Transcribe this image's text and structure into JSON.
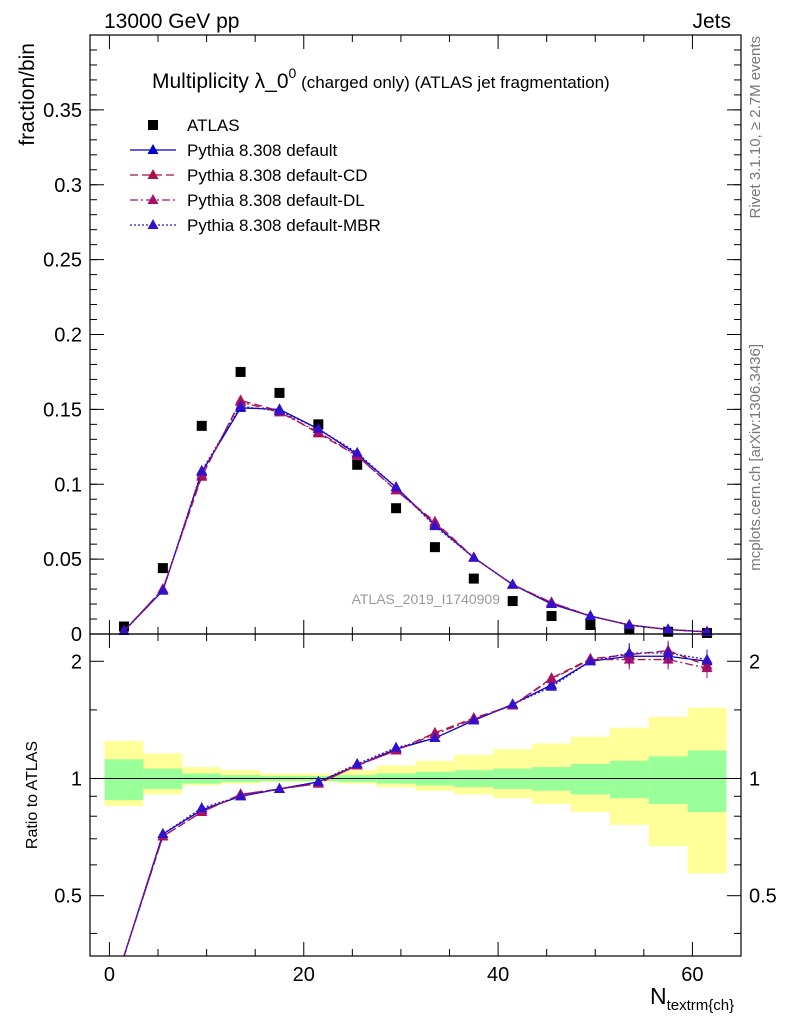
{
  "header": {
    "left": "13000 GeV pp",
    "right": "Jets"
  },
  "title": {
    "main": "Multiplicity λ_0",
    "sup": "0",
    "sub": " (charged only) (ATLAS jet fragmentation)"
  },
  "side_labels": {
    "rivet": "Rivet 3.1.10, ≥ 2.7M events",
    "mcplots": "mcplots.cern.ch [arXiv:1306.3436]"
  },
  "watermark": "ATLAS_2019_I1740909",
  "chart_data": [
    {
      "type": "scatter",
      "panel": "main",
      "ylabel": "fraction/bin",
      "xlim": [
        -2,
        65
      ],
      "ylim": [
        0,
        0.4
      ],
      "yticks": [
        "0",
        "0.05",
        "0.1",
        "0.15",
        "0.2",
        "0.25",
        "0.3",
        "0.35"
      ],
      "x": [
        1.5,
        5.5,
        9.5,
        13.5,
        17.5,
        21.5,
        25.5,
        29.5,
        33.5,
        37.5,
        41.5,
        45.5,
        49.5,
        53.5,
        57.5,
        61.5
      ],
      "series": [
        {
          "name": "ATLAS",
          "color": "#000000",
          "style": "square",
          "values": [
            0.005,
            0.044,
            0.139,
            0.175,
            0.161,
            0.14,
            0.113,
            0.084,
            0.058,
            0.037,
            0.022,
            0.012,
            0.006,
            0.003,
            0.0015,
            0.0007
          ]
        },
        {
          "name": "Pythia 8.308 default",
          "color": "#0000cc",
          "style": "solid",
          "values": [
            0.002,
            0.029,
            0.108,
            0.151,
            0.15,
            0.137,
            0.12,
            0.098,
            0.073,
            0.051,
            0.033,
            0.02,
            0.012,
            0.006,
            0.003,
            0.0014
          ]
        },
        {
          "name": "Pythia 8.308 default-CD",
          "color": "#aa1144",
          "style": "dashed",
          "values": [
            0.002,
            0.03,
            0.105,
            0.156,
            0.149,
            0.134,
            0.119,
            0.096,
            0.075,
            0.051,
            0.033,
            0.021,
            0.012,
            0.006,
            0.003,
            0.0014
          ]
        },
        {
          "name": "Pythia 8.308 default-DL",
          "color": "#aa1166",
          "style": "dashdot",
          "values": [
            0.002,
            0.03,
            0.106,
            0.155,
            0.148,
            0.135,
            0.119,
            0.096,
            0.074,
            0.051,
            0.033,
            0.021,
            0.012,
            0.006,
            0.003,
            0.0014
          ]
        },
        {
          "name": "Pythia 8.308 default-MBR",
          "color": "#3311cc",
          "style": "dotted",
          "values": [
            0.002,
            0.029,
            0.109,
            0.152,
            0.149,
            0.137,
            0.121,
            0.098,
            0.072,
            0.051,
            0.033,
            0.02,
            0.012,
            0.006,
            0.003,
            0.0014
          ]
        }
      ]
    },
    {
      "type": "line",
      "panel": "ratio",
      "ylabel": "Ratio to ATLAS",
      "xlabel": "N",
      "xlabel_sub": "textrm{ch}",
      "xlim": [
        -2,
        65
      ],
      "ylim": [
        0.35,
        2.35
      ],
      "yticks": [
        "0.5",
        "1",
        "2"
      ],
      "xticks": [
        "0",
        "20",
        "40",
        "60"
      ],
      "bands": {
        "edges": [
          -0.5,
          3.5,
          7.5,
          11.5,
          15.5,
          19.5,
          23.5,
          27.5,
          31.5,
          35.5,
          39.5,
          43.5,
          47.5,
          51.5,
          55.5,
          59.5,
          63.5
        ],
        "green_lo": [
          0.88,
          0.94,
          0.97,
          0.98,
          0.985,
          0.985,
          0.98,
          0.97,
          0.96,
          0.95,
          0.94,
          0.93,
          0.91,
          0.89,
          0.86,
          0.82
        ],
        "green_hi": [
          1.12,
          1.06,
          1.03,
          1.02,
          1.015,
          1.015,
          1.02,
          1.03,
          1.04,
          1.05,
          1.06,
          1.07,
          1.09,
          1.11,
          1.14,
          1.18
        ],
        "yellow_lo": [
          0.85,
          0.91,
          0.96,
          0.97,
          0.98,
          0.98,
          0.97,
          0.95,
          0.93,
          0.91,
          0.89,
          0.86,
          0.82,
          0.76,
          0.67,
          0.57
        ],
        "yellow_hi": [
          1.25,
          1.16,
          1.07,
          1.05,
          1.03,
          1.03,
          1.05,
          1.08,
          1.11,
          1.15,
          1.19,
          1.23,
          1.28,
          1.35,
          1.44,
          1.52
        ]
      },
      "x": [
        1.5,
        5.5,
        9.5,
        13.5,
        17.5,
        21.5,
        25.5,
        29.5,
        33.5,
        37.5,
        41.5,
        45.5,
        49.5,
        53.5,
        57.5,
        61.5
      ],
      "series": [
        {
          "name": "Pythia 8.308 default",
          "color": "#0000cc",
          "style": "solid",
          "values": [
            0.35,
            0.72,
            0.83,
            0.9,
            0.94,
            0.98,
            1.08,
            1.19,
            1.27,
            1.41,
            1.55,
            1.74,
            2.0,
            2.06,
            2.06,
            2.0
          ]
        },
        {
          "name": "Pythia 8.308 default-CD",
          "color": "#aa1144",
          "style": "dashed",
          "values": [
            0.35,
            0.71,
            0.82,
            0.91,
            0.94,
            0.97,
            1.08,
            1.18,
            1.31,
            1.43,
            1.54,
            1.81,
            2.03,
            2.08,
            2.13,
            1.95
          ]
        },
        {
          "name": "Pythia 8.308 default-DL",
          "color": "#aa1166",
          "style": "dashdot",
          "values": [
            0.35,
            0.71,
            0.82,
            0.91,
            0.94,
            0.97,
            1.08,
            1.18,
            1.3,
            1.42,
            1.54,
            1.8,
            2.02,
            2.02,
            2.02,
            1.92
          ]
        },
        {
          "name": "Pythia 8.308 default-MBR",
          "color": "#3311cc",
          "style": "dotted",
          "values": [
            0.35,
            0.72,
            0.84,
            0.9,
            0.94,
            0.98,
            1.09,
            1.2,
            1.27,
            1.41,
            1.55,
            1.72,
            2.0,
            2.1,
            2.1,
            2.02
          ]
        }
      ]
    }
  ]
}
